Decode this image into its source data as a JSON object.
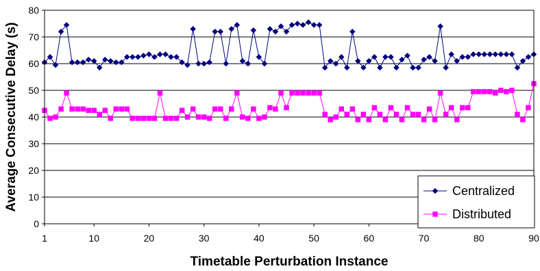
{
  "chart_data": {
    "type": "line",
    "title": "",
    "xlabel": "Timetable Perturbation Instance",
    "ylabel": "Average Consecutive Delay (s)",
    "xlim": [
      1,
      90
    ],
    "ylim": [
      0,
      80
    ],
    "xticks": [
      1,
      10,
      20,
      30,
      40,
      50,
      60,
      70,
      80,
      90
    ],
    "yticks": [
      0,
      10,
      20,
      30,
      40,
      50,
      60,
      70,
      80
    ],
    "grid": "horizontal",
    "legend_position": "bottom-right",
    "series": [
      {
        "name": "Centralized",
        "color": "#000080",
        "marker": "diamond",
        "values": [
          60.5,
          62.5,
          59.5,
          72,
          74.5,
          60.5,
          60.5,
          60.5,
          61.5,
          61,
          58.5,
          61.5,
          61,
          60.5,
          60.5,
          62.5,
          62.5,
          62.5,
          63,
          63.5,
          62.5,
          63.5,
          63.5,
          62.5,
          62.5,
          60.5,
          59.5,
          73,
          60,
          60,
          60.5,
          72,
          72,
          60,
          73,
          74.5,
          61,
          60,
          72.5,
          62.5,
          60,
          73,
          72,
          74,
          72,
          74.5,
          75,
          74.5,
          75.5,
          74.5,
          74.5,
          58.5,
          61,
          60,
          62.5,
          58.5,
          72,
          61,
          58.5,
          61,
          62.5,
          58.5,
          62.5,
          62.5,
          58.5,
          61.5,
          63,
          58.5,
          58.5,
          61.5,
          62.5,
          61,
          74,
          58.5,
          63.5,
          61,
          62.5,
          62.5,
          63.5,
          63.5,
          63.5,
          63.5,
          63.5,
          63.5,
          63.5,
          63.5,
          58.5,
          61,
          62.5,
          63.5
        ]
      },
      {
        "name": "Distributed",
        "color": "#FF00FF",
        "marker": "square",
        "values": [
          42.5,
          39.5,
          40,
          43,
          49,
          43,
          43,
          43,
          42.5,
          42.5,
          41,
          42.5,
          39.5,
          43,
          43,
          43,
          39.5,
          39.5,
          39.5,
          39.5,
          39.5,
          49,
          39.5,
          39.5,
          39.5,
          42.5,
          40,
          43,
          40,
          40,
          39.5,
          43,
          43,
          39.5,
          43,
          49,
          40,
          39.5,
          43,
          39.5,
          40,
          43.5,
          43,
          49,
          43.5,
          49,
          49,
          49,
          49,
          49,
          49,
          41,
          39,
          40,
          43,
          41,
          43,
          39,
          41,
          39,
          43.5,
          41,
          39,
          43.5,
          41,
          39,
          43.5,
          41,
          41,
          39,
          43,
          39,
          49,
          41,
          43.5,
          39,
          43.5,
          43.5,
          49.5,
          49.5,
          49.5,
          49.5,
          49,
          50,
          49.5,
          50,
          41,
          39,
          43.5,
          52.5
        ]
      }
    ]
  }
}
